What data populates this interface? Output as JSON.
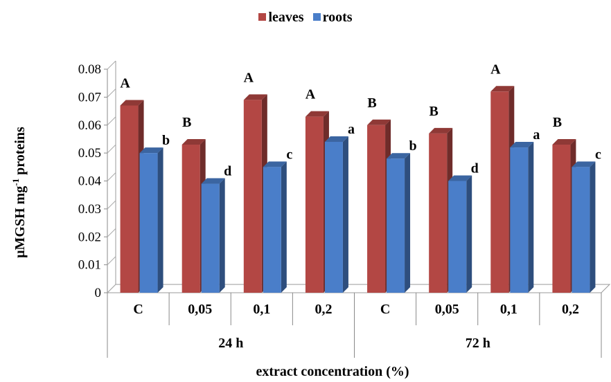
{
  "chart_data": {
    "type": "bar",
    "title": "",
    "xlabel": "extract  concentration (%)",
    "ylabel": {
      "prefix": "μMGSH mg",
      "sup": "-1",
      "suffix": " proteins"
    },
    "ylim": [
      0,
      0.08
    ],
    "yticks": [
      "0",
      "0.01",
      "0.02",
      "0.03",
      "0.04",
      "0.05",
      "0.06",
      "0.07",
      "0.08"
    ],
    "categories": [
      "C",
      "0,05",
      "0,1",
      "0,2",
      "C",
      "0,05",
      "0,1",
      "0,2"
    ],
    "groups": [
      {
        "label": "24 h",
        "span": [
          0,
          3
        ]
      },
      {
        "label": "72 h",
        "span": [
          4,
          7
        ]
      }
    ],
    "series": [
      {
        "name": "leaves",
        "color": "#b34744",
        "values": [
          0.067,
          0.053,
          0.069,
          0.063,
          0.06,
          0.057,
          0.072,
          0.053
        ],
        "letters": [
          "A",
          "B",
          "A",
          "A",
          "B",
          "B",
          "A",
          "B"
        ]
      },
      {
        "name": "roots",
        "color": "#4a7ec9",
        "values": [
          0.05,
          0.039,
          0.045,
          0.054,
          0.048,
          0.04,
          0.052,
          0.045
        ],
        "letters": [
          "b",
          "d",
          "c",
          "a",
          "b",
          "d",
          "a",
          "c"
        ]
      }
    ],
    "legend_position": "top-center",
    "grid": false
  }
}
